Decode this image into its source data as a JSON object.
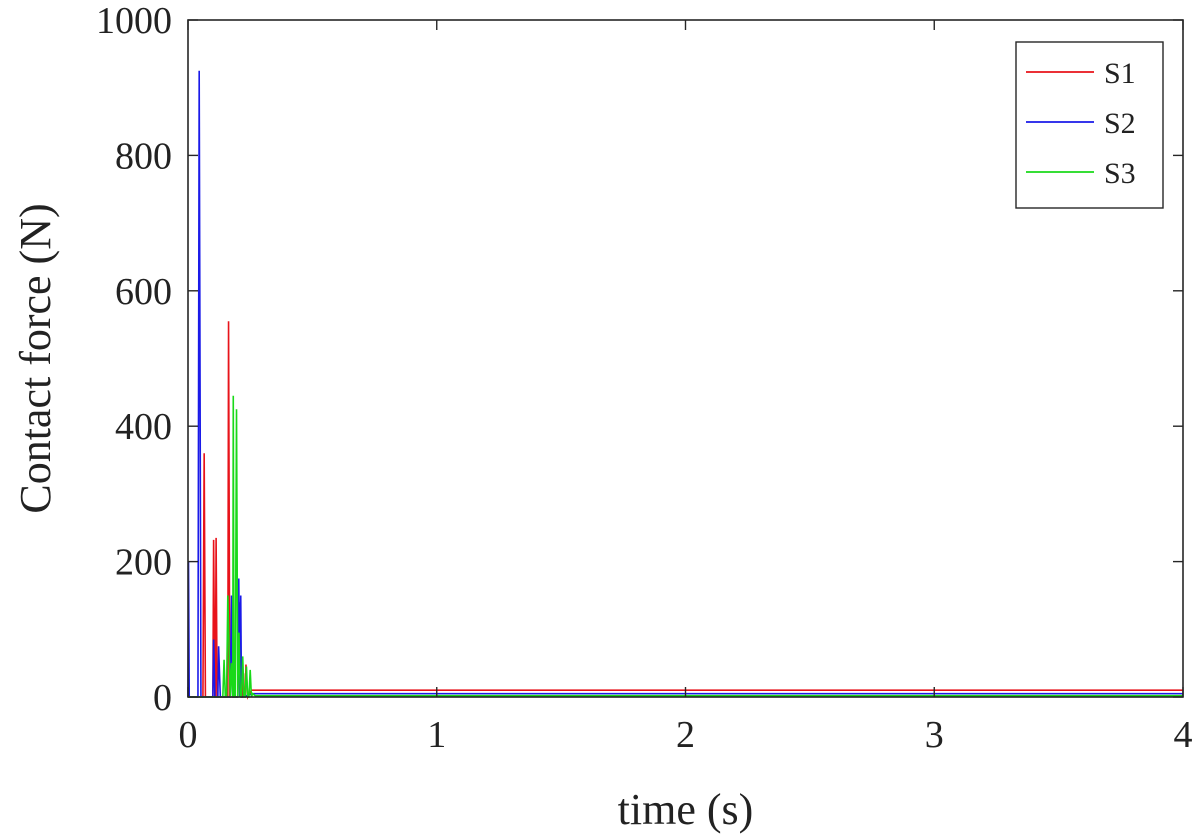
{
  "chart_data": {
    "type": "line",
    "xlabel": "time (s)",
    "ylabel": "Contact force (N)",
    "xlim": [
      0,
      4
    ],
    "ylim": [
      0,
      1000
    ],
    "xticks": [
      0,
      1,
      2,
      3,
      4
    ],
    "yticks": [
      0,
      200,
      400,
      600,
      800,
      1000
    ],
    "xtick_labels": [
      "0",
      "1",
      "2",
      "3",
      "4"
    ],
    "ytick_labels": [
      "0",
      "200",
      "400",
      "600",
      "800",
      "1000"
    ],
    "grid": false,
    "legend_position": "top-right",
    "series": [
      {
        "name": "S1",
        "color": "#e8131a",
        "x": [
          0,
          0.06,
          0.065,
          0.07,
          0.1,
          0.103,
          0.108,
          0.11,
          0.113,
          0.117,
          0.12,
          0.16,
          0.163,
          0.168,
          0.17,
          0.172,
          0.18,
          0.2,
          0.208,
          0.215,
          0.218,
          0.223,
          0.225,
          0.23,
          0.233,
          0.24,
          0.255,
          0.27,
          4
        ],
        "y": [
          0,
          0,
          360,
          0,
          0,
          232,
          0,
          0,
          235,
          0,
          0,
          0,
          555,
          0,
          0,
          0,
          0,
          0,
          140,
          0,
          0,
          35,
          0,
          0,
          48,
          0,
          10,
          10,
          10
        ]
      },
      {
        "name": "S2",
        "color": "#1a1ae8",
        "x": [
          0,
          0.002,
          0.005,
          0.01,
          0.04,
          0.045,
          0.052,
          0.06,
          0.1,
          0.103,
          0.108,
          0.12,
          0.123,
          0.13,
          0.17,
          0.175,
          0.18,
          0.19,
          0.2,
          0.204,
          0.208,
          0.212,
          0.215,
          0.22,
          0.26,
          0.27,
          4
        ],
        "y": [
          0,
          200,
          0,
          0,
          0,
          925,
          0,
          0,
          0,
          85,
          0,
          0,
          75,
          0,
          0,
          150,
          0,
          0,
          0,
          175,
          0,
          150,
          0,
          0,
          5,
          5,
          5
        ]
      },
      {
        "name": "S3",
        "color": "#19d919",
        "x": [
          0,
          0.14,
          0.145,
          0.15,
          0.155,
          0.16,
          0.17,
          0.175,
          0.18,
          0.182,
          0.185,
          0.19,
          0.195,
          0.2,
          0.205,
          0.21,
          0.215,
          0.22,
          0.225,
          0.23,
          0.235,
          0.24,
          0.245,
          0.25,
          0.255,
          0.26,
          0.27,
          4
        ],
        "y": [
          0,
          0,
          55,
          0,
          0,
          150,
          0,
          50,
          0,
          445,
          0,
          0,
          425,
          0,
          95,
          0,
          0,
          60,
          0,
          0,
          45,
          0,
          0,
          40,
          0,
          5,
          2,
          2
        ]
      }
    ]
  }
}
